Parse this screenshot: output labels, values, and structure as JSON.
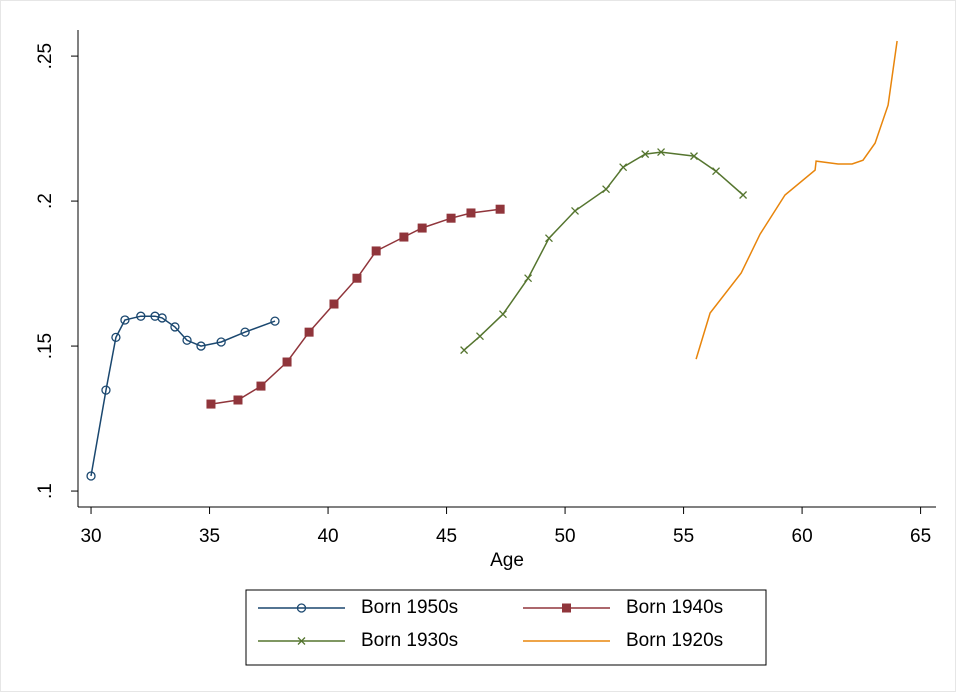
{
  "chart_data": {
    "type": "line",
    "x_label": "Age",
    "xlim": [
      29.45,
      65.65
    ],
    "xticks": [
      30,
      35,
      40,
      45,
      50,
      55,
      60,
      65
    ],
    "ylim": [
      0.0945,
      0.259
    ],
    "yticks": [
      {
        "value": 0.1,
        "label": ".1"
      },
      {
        "value": 0.15,
        "label": ".15"
      },
      {
        "value": 0.2,
        "label": ".2"
      },
      {
        "value": 0.25,
        "label": ".25"
      }
    ],
    "grid": false,
    "legend": "bottom",
    "series": [
      {
        "name": "Born 1950s",
        "color": "#1a476f",
        "marker": "circle",
        "x": [
          30,
          30.63,
          31.05,
          31.43,
          32.1,
          32.7,
          33.0,
          33.54,
          34.05,
          34.64,
          35.49,
          36.5,
          37.76
        ],
        "values": [
          0.1052,
          0.1348,
          0.153,
          0.159,
          0.1603,
          0.1603,
          0.1597,
          0.1566,
          0.152,
          0.15,
          0.1514,
          0.1548,
          0.1586
        ]
      },
      {
        "name": "Born 1940s",
        "color": "#90353b",
        "marker": "square",
        "x": [
          35.06,
          36.2,
          37.17,
          38.27,
          39.2,
          40.25,
          41.22,
          42.03,
          43.2,
          43.97,
          45.19,
          46.03,
          47.26
        ],
        "values": [
          0.13,
          0.1314,
          0.1362,
          0.1445,
          0.1548,
          0.1645,
          0.1734,
          0.1828,
          0.1876,
          0.1907,
          0.1941,
          0.1959,
          0.1972
        ]
      },
      {
        "name": "Born 1930s",
        "color": "#55752f",
        "marker": "x",
        "x": [
          45.74,
          46.41,
          47.38,
          48.44,
          49.32,
          50.42,
          51.73,
          52.45,
          53.38,
          54.05,
          55.44,
          56.37,
          57.51
        ],
        "values": [
          0.1486,
          0.1534,
          0.161,
          0.1734,
          0.1872,
          0.1966,
          0.2041,
          0.2117,
          0.2162,
          0.2169,
          0.2155,
          0.2103,
          0.2021
        ]
      },
      {
        "name": "Born 1920s",
        "color": "#e8850c",
        "marker": "none",
        "x": [
          55.53,
          56.12,
          57.43,
          58.23,
          59.28,
          60.55,
          60.59,
          61.52,
          62.11,
          62.57,
          63.08,
          63.63,
          64.01
        ],
        "values": [
          0.1455,
          0.1614,
          0.1752,
          0.1886,
          0.2021,
          0.2107,
          0.2138,
          0.2128,
          0.2128,
          0.2141,
          0.22,
          0.2331,
          0.2552
        ]
      }
    ]
  }
}
